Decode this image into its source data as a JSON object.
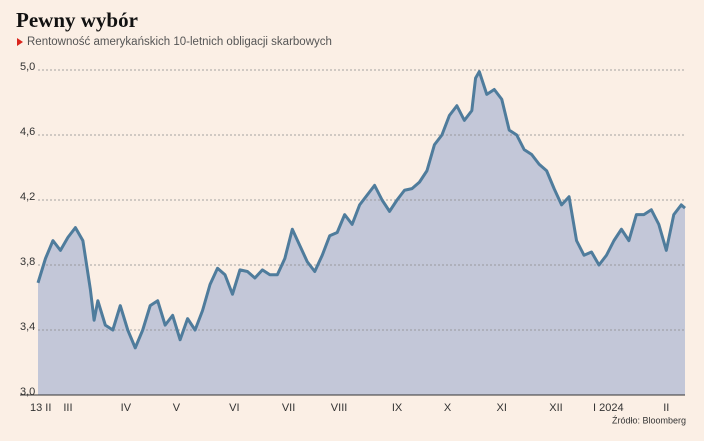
{
  "chart_data": {
    "type": "line",
    "title": "Pewny wybór",
    "subtitle": "Rentowność amerykańskich 10-letnich obligacji skarbowych",
    "source": "Źródło: Bloomberg",
    "x": [
      0,
      4,
      8,
      12,
      16,
      20,
      24,
      28,
      30,
      32,
      36,
      40,
      44,
      48,
      52,
      56,
      60,
      64,
      68,
      72,
      76,
      80,
      84,
      88,
      92,
      96,
      100,
      104,
      108,
      112,
      116,
      120,
      124,
      128,
      132,
      136,
      140,
      144,
      148,
      152,
      156,
      160,
      164,
      168,
      172,
      176,
      180,
      184,
      188,
      192,
      196,
      200,
      204,
      208,
      212,
      216,
      220,
      224,
      228,
      232,
      234,
      236,
      240,
      244,
      248,
      252,
      256,
      260,
      264,
      268,
      272,
      276,
      280,
      284,
      288,
      292,
      296,
      300,
      304,
      308,
      312,
      316,
      320,
      324,
      328,
      332,
      336,
      340,
      344,
      346
    ],
    "series": [
      {
        "name": "Rentowność",
        "color": "#4f7c9c",
        "fill": "#c3c7d8",
        "values": [
          3.69,
          3.84,
          3.95,
          3.89,
          3.97,
          4.03,
          3.95,
          3.65,
          3.46,
          3.58,
          3.43,
          3.4,
          3.55,
          3.4,
          3.29,
          3.4,
          3.55,
          3.58,
          3.43,
          3.49,
          3.34,
          3.47,
          3.4,
          3.52,
          3.68,
          3.78,
          3.74,
          3.62,
          3.77,
          3.76,
          3.72,
          3.77,
          3.74,
          3.74,
          3.84,
          4.02,
          3.92,
          3.82,
          3.76,
          3.86,
          3.98,
          4.0,
          4.11,
          4.05,
          4.17,
          4.23,
          4.29,
          4.2,
          4.13,
          4.2,
          4.26,
          4.27,
          4.31,
          4.38,
          4.54,
          4.6,
          4.72,
          4.78,
          4.69,
          4.75,
          4.95,
          4.99,
          4.85,
          4.88,
          4.82,
          4.63,
          4.6,
          4.51,
          4.48,
          4.42,
          4.38,
          4.27,
          4.17,
          4.22,
          3.95,
          3.86,
          3.88,
          3.8,
          3.86,
          3.95,
          4.02,
          3.95,
          4.11,
          4.11,
          4.14,
          4.05,
          3.89,
          4.11,
          4.17,
          4.15
        ]
      }
    ],
    "xlim": [
      0,
      346
    ],
    "xticks": [
      {
        "value": 0,
        "label": "13 II"
      },
      {
        "value": 16,
        "label": "III"
      },
      {
        "value": 47,
        "label": "IV"
      },
      {
        "value": 74,
        "label": "V"
      },
      {
        "value": 105,
        "label": "VI"
      },
      {
        "value": 134,
        "label": "VII"
      },
      {
        "value": 161,
        "label": "VIII"
      },
      {
        "value": 192,
        "label": "IX"
      },
      {
        "value": 219,
        "label": "X"
      },
      {
        "value": 248,
        "label": "XI"
      },
      {
        "value": 277,
        "label": "XII"
      },
      {
        "value": 305,
        "label": "I 2024"
      },
      {
        "value": 336,
        "label": "II"
      }
    ],
    "ylim": [
      3.0,
      5.0
    ],
    "yticks": [
      {
        "value": 3.0,
        "label": "3,0"
      },
      {
        "value": 3.4,
        "label": "3,4"
      },
      {
        "value": 3.8,
        "label": "3,8"
      },
      {
        "value": 4.2,
        "label": "4,2"
      },
      {
        "value": 4.6,
        "label": "4,6"
      },
      {
        "value": 5.0,
        "label": "5,0"
      }
    ],
    "grid": true
  }
}
